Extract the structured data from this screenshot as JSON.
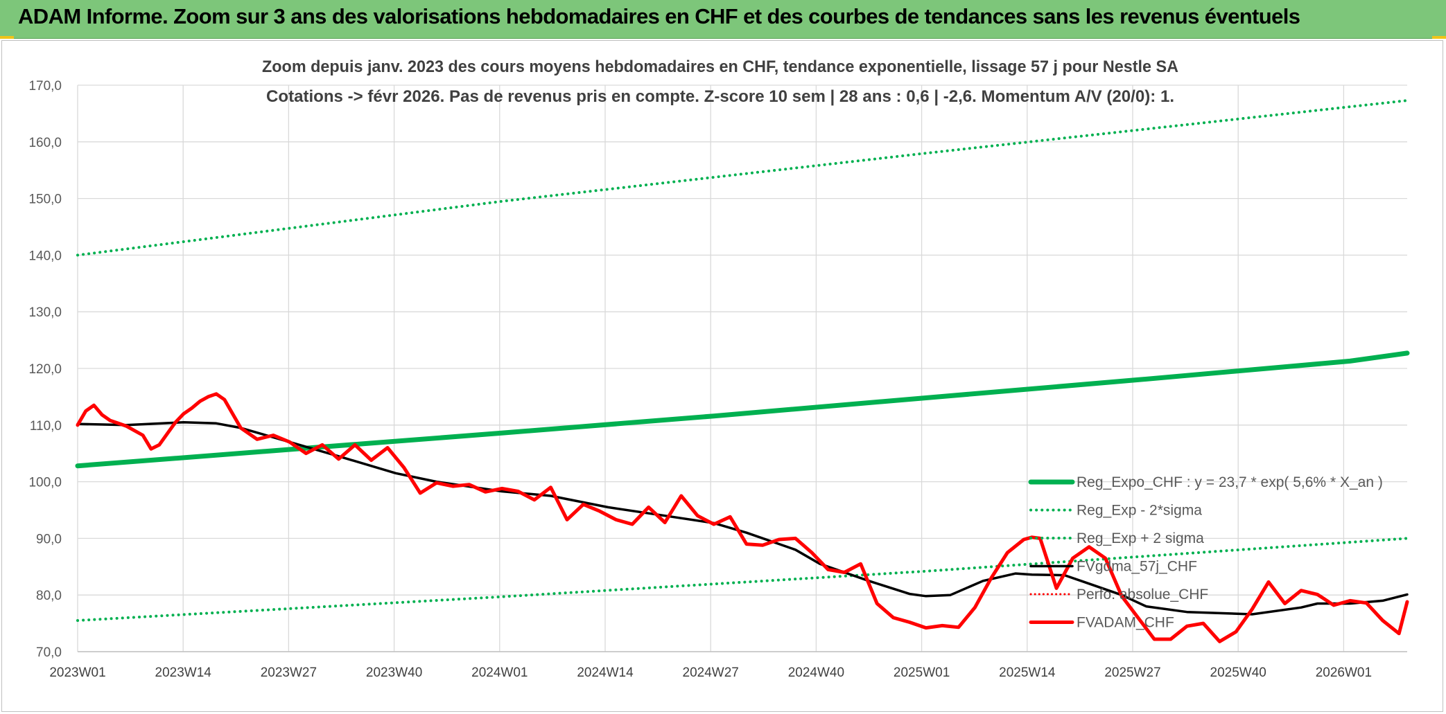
{
  "header": {
    "title": "ADAM Informe. Zoom sur 3 ans des valorisations hebdomadaires en CHF et des courbes de tendances sans les revenus éventuels"
  },
  "chart_data": {
    "type": "line",
    "title_line1": "Zoom depuis janv. 2023 des cours moyens hebdomadaires en CHF, tendance exponentielle, lissage 57 j pour Nestle SA",
    "title_line2": "Cotations -> févr 2026. Pas de revenus pris en compte. Z-score 10 sem | 28 ans : 0,6 | -2,6. Momentum A/V (20/0): 1.",
    "x_ticks": [
      "2023W01",
      "2023W14",
      "2023W27",
      "2023W40",
      "2024W01",
      "2024W14",
      "2024W27",
      "2024W40",
      "2025W01",
      "2025W14",
      "2025W27",
      "2025W40",
      "2026W01"
    ],
    "y_ticks": [
      "70,0",
      "80,0",
      "90,0",
      "100,0",
      "110,0",
      "120,0",
      "130,0",
      "140,0",
      "150,0",
      "160,0",
      "170,0"
    ],
    "ylim": [
      70,
      170
    ],
    "grid": true,
    "legend_position": "bottom-right",
    "colors": {
      "reg_expo": "#00b050",
      "sigma_bands": "#00b050",
      "fvgdma": "#000000",
      "perfo": "#ff0000",
      "fvadam": "#ff0000"
    },
    "legend": [
      {
        "name": "Reg_Expo_CHF : y = 23,7 * exp( 5,6% *  X_an )",
        "style": "thick-solid",
        "color": "#00b050"
      },
      {
        "name": "Reg_Exp - 2*sigma",
        "style": "dotted",
        "color": "#00b050"
      },
      {
        "name": "Reg_Exp + 2 sigma",
        "style": "dotted",
        "color": "#00b050"
      },
      {
        "name": "FVgdma_57j_CHF",
        "style": "solid",
        "color": "#000000"
      },
      {
        "name": "Perfo. absolue_CHF",
        "style": "dotted",
        "color": "#ff0000"
      },
      {
        "name": "FVADAM_CHF",
        "style": "thick-solid",
        "color": "#ff0000"
      }
    ],
    "series": [
      {
        "name": "Reg_Expo_CHF : y = 23,7 * exp( 5,6% *  X_an )",
        "x": [
          0,
          26,
          52,
          78,
          104,
          130,
          156,
          163
        ],
        "values": [
          102.8,
          105.7,
          108.6,
          111.6,
          114.8,
          118.0,
          121.3,
          122.7
        ]
      },
      {
        "name": "Reg_Exp - 2*sigma",
        "x": [
          0,
          52,
          104,
          163
        ],
        "values": [
          75.5,
          79.7,
          84.2,
          90.0
        ]
      },
      {
        "name": "Reg_Exp + 2 sigma",
        "x": [
          0,
          52,
          104,
          163
        ],
        "values": [
          140.0,
          149.5,
          158.0,
          167.3
        ]
      },
      {
        "name": "FVgdma_57j_CHF",
        "x": [
          0,
          6,
          13,
          17,
          20,
          26,
          32,
          39,
          44,
          52,
          58,
          65,
          72,
          78,
          82,
          88,
          91,
          97,
          102,
          104,
          107,
          111,
          115,
          117,
          121,
          124,
          128,
          131,
          136,
          144,
          150,
          152,
          156,
          160,
          163
        ],
        "values": [
          110.2,
          110.0,
          110.5,
          110.3,
          109.5,
          107.0,
          104.5,
          101.5,
          100.0,
          98.3,
          97.5,
          95.5,
          94.0,
          92.7,
          91.0,
          88.0,
          85.5,
          82.5,
          80.2,
          79.8,
          80.0,
          82.5,
          83.8,
          83.6,
          83.5,
          82.0,
          80.0,
          78.0,
          77.0,
          76.6,
          77.8,
          78.5,
          78.5,
          79.0,
          80.1
        ]
      },
      {
        "name": "Perfo. absolue_CHF",
        "x": [],
        "values": []
      },
      {
        "name": "FVADAM_CHF",
        "x": [
          0,
          1,
          2,
          3,
          4,
          5,
          6,
          8,
          9,
          10,
          11,
          12,
          13,
          14,
          15,
          16,
          17,
          18,
          20,
          22,
          24,
          26,
          28,
          30,
          32,
          34,
          36,
          38,
          40,
          42,
          44,
          46,
          48,
          50,
          52,
          54,
          56,
          58,
          60,
          62,
          64,
          66,
          68,
          70,
          72,
          74,
          76,
          78,
          80,
          82,
          84,
          86,
          88,
          90,
          92,
          94,
          96,
          98,
          100,
          102,
          104,
          106,
          108,
          110,
          112,
          114,
          116,
          117,
          118,
          120,
          122,
          124,
          126,
          128,
          130,
          132,
          134,
          136,
          138,
          140,
          142,
          144,
          146,
          148,
          150,
          152,
          154,
          156,
          158,
          160,
          162,
          163
        ],
        "values": [
          110,
          112.5,
          113.5,
          111.8,
          110.8,
          110.3,
          109.8,
          108.2,
          105.8,
          106.5,
          108.5,
          110.5,
          112,
          113,
          114.2,
          115,
          115.5,
          114.5,
          109.5,
          107.5,
          108.2,
          107,
          105,
          106.5,
          104,
          106.5,
          103.8,
          106,
          102.5,
          98,
          99.8,
          99.2,
          99.5,
          98.2,
          98.8,
          98.3,
          96.8,
          99,
          93.3,
          96,
          94.8,
          93.3,
          92.5,
          95.5,
          92.8,
          97.5,
          94,
          92.5,
          93.8,
          89,
          88.8,
          89.8,
          90,
          87.5,
          84.5,
          84,
          85.5,
          78.5,
          76,
          75.2,
          74.2,
          74.6,
          74.3,
          77.8,
          83,
          87.5,
          89.8,
          90.2,
          90,
          81.2,
          86.5,
          88.5,
          86.5,
          79.8,
          76,
          72.2,
          72.2,
          74.5,
          75,
          71.8,
          73.5,
          77.5,
          82.3,
          78.5,
          80.8,
          80.1,
          78.2,
          79,
          78.6,
          75.5,
          73.2,
          78.8
        ]
      }
    ]
  }
}
